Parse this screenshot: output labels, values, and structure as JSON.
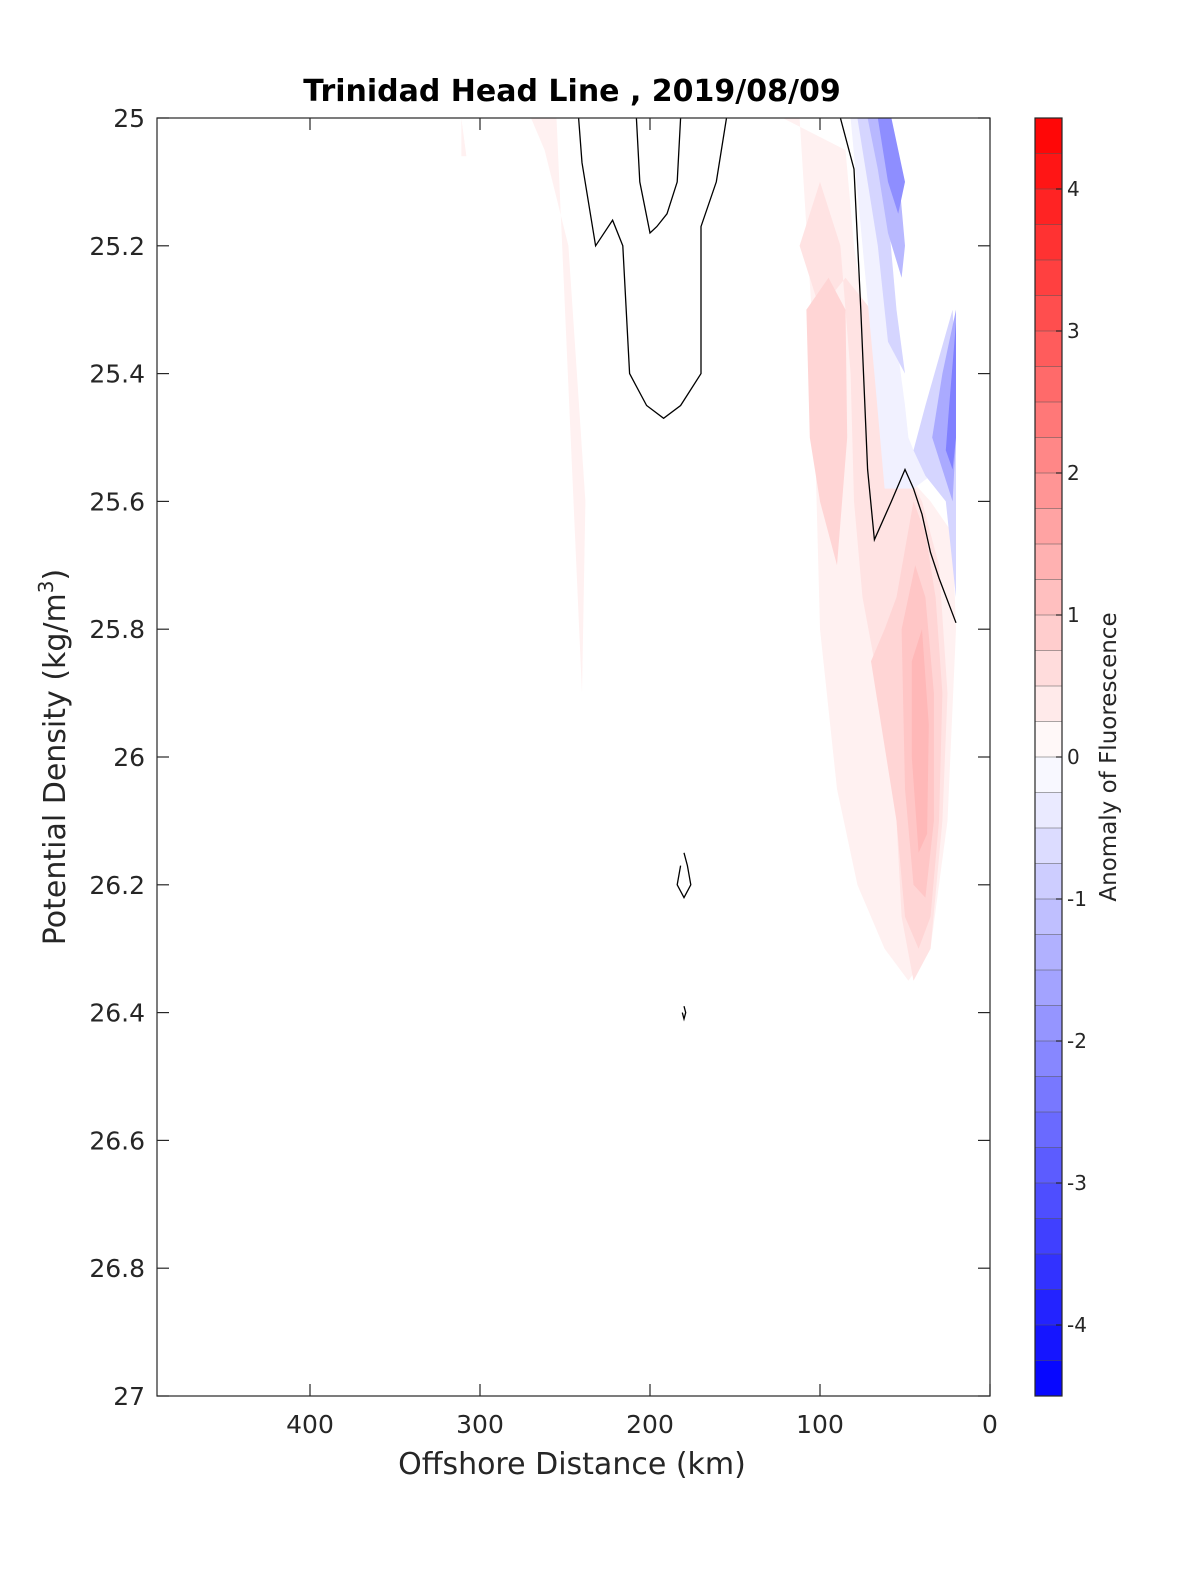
{
  "chart_data": {
    "type": "heatmap",
    "title": "Trinidad Head Line , 2019/08/09",
    "xlabel": "Offshore Distance (km)",
    "ylabel_main": "Potential Density (kg/m",
    "ylabel_sup": "3",
    "ylabel_close": ")",
    "xlim": [
      490,
      0
    ],
    "x_direction": "reversed",
    "ylim": [
      25,
      27
    ],
    "y_direction": "reversed",
    "xticks": [
      400,
      300,
      200,
      100,
      0
    ],
    "xtick_labels": [
      "400",
      "300",
      "200",
      "100",
      "0"
    ],
    "yticks": [
      25,
      25.2,
      25.4,
      25.6,
      25.8,
      26,
      26.2,
      26.4,
      26.6,
      26.8,
      27
    ],
    "ytick_labels": [
      "25",
      "25.2",
      "25.4",
      "25.6",
      "25.8",
      "26",
      "26.2",
      "26.4",
      "26.6",
      "26.8",
      "27"
    ],
    "grid": false,
    "colorbar": {
      "label": "Anomaly of Fluorescence",
      "range": [
        -4.5,
        4.5
      ],
      "level_step": 0.25,
      "ticks": [
        4,
        3,
        2,
        1,
        0,
        -1,
        -2,
        -3,
        -4
      ],
      "tick_labels": [
        "4",
        "3",
        "2",
        "1",
        "0",
        "-1",
        "-2",
        "-3",
        "-4"
      ],
      "low_color": "#0000ff",
      "mid_color": "#ffffff",
      "high_color": "#ff0000"
    },
    "fill_regions": [
      {
        "value": 0.25,
        "points": [
          [
            311,
            25
          ],
          [
            308,
            25.06
          ],
          [
            311,
            25.06
          ]
        ]
      },
      {
        "value": 0.25,
        "points": [
          [
            270,
            25
          ],
          [
            255,
            25
          ],
          [
            245,
            25.6
          ],
          [
            240,
            25.9
          ],
          [
            238,
            25.6
          ],
          [
            248,
            25.2
          ],
          [
            262,
            25.05
          ]
        ]
      },
      {
        "value": 0.25,
        "points": [
          [
            122,
            25
          ],
          [
            112,
            25
          ],
          [
            105,
            25.3
          ],
          [
            100,
            25.8
          ],
          [
            90,
            26.05
          ],
          [
            78,
            26.2
          ],
          [
            62,
            26.3
          ],
          [
            48,
            26.35
          ],
          [
            35,
            26.3
          ],
          [
            25,
            26.1
          ],
          [
            20,
            25.8
          ],
          [
            22,
            25.65
          ],
          [
            35,
            25.6
          ],
          [
            52,
            25.55
          ],
          [
            68,
            25.42
          ],
          [
            80,
            25.2
          ],
          [
            85,
            25.05
          ]
        ]
      },
      {
        "value": 0.5,
        "points": [
          [
            112,
            25.2
          ],
          [
            100,
            25.1
          ],
          [
            88,
            25.2
          ],
          [
            82,
            25.4
          ],
          [
            80,
            25.6
          ],
          [
            75,
            25.75
          ],
          [
            68,
            25.85
          ],
          [
            60,
            25.95
          ],
          [
            55,
            26.1
          ],
          [
            52,
            26.25
          ],
          [
            45,
            26.35
          ],
          [
            35,
            26.3
          ],
          [
            28,
            26.1
          ],
          [
            25,
            25.9
          ],
          [
            30,
            25.7
          ],
          [
            40,
            25.6
          ],
          [
            50,
            25.55
          ],
          [
            62,
            25.45
          ],
          [
            70,
            25.3
          ],
          [
            85,
            25.25
          ],
          [
            100,
            25.3
          ]
        ]
      },
      {
        "value": 0.75,
        "points": [
          [
            108,
            25.3
          ],
          [
            95,
            25.25
          ],
          [
            85,
            25.3
          ],
          [
            84,
            25.5
          ],
          [
            90,
            25.7
          ],
          [
            100,
            25.6
          ],
          [
            106,
            25.5
          ]
        ]
      },
      {
        "value": 0.75,
        "points": [
          [
            70,
            25.85
          ],
          [
            62,
            25.8
          ],
          [
            55,
            25.75
          ],
          [
            45,
            25.6
          ],
          [
            38,
            25.65
          ],
          [
            32,
            25.75
          ],
          [
            28,
            25.9
          ],
          [
            30,
            26.1
          ],
          [
            35,
            26.25
          ],
          [
            42,
            26.3
          ],
          [
            50,
            26.25
          ],
          [
            55,
            26.1
          ]
        ]
      },
      {
        "value": 1.0,
        "points": [
          [
            52,
            25.8
          ],
          [
            44,
            25.7
          ],
          [
            38,
            25.75
          ],
          [
            33,
            25.9
          ],
          [
            33,
            26.1
          ],
          [
            38,
            26.22
          ],
          [
            45,
            26.2
          ],
          [
            50,
            26.05
          ]
        ]
      },
      {
        "value": 1.25,
        "points": [
          [
            46,
            25.85
          ],
          [
            40,
            25.8
          ],
          [
            36,
            25.95
          ],
          [
            37,
            26.12
          ],
          [
            42,
            26.15
          ],
          [
            46,
            26.0
          ]
        ]
      },
      {
        "value": -0.25,
        "points": [
          [
            82,
            25
          ],
          [
            75,
            25
          ],
          [
            60,
            25.2
          ],
          [
            55,
            25.35
          ],
          [
            50,
            25.45
          ],
          [
            48,
            25.5
          ],
          [
            45,
            25.52
          ],
          [
            40,
            25.5
          ],
          [
            30,
            25.45
          ],
          [
            20,
            25.3
          ],
          [
            20,
            25.6
          ],
          [
            30,
            25.55
          ],
          [
            45,
            25.58
          ],
          [
            62,
            25.58
          ],
          [
            68,
            25.4
          ],
          [
            75,
            25.2
          ]
        ]
      },
      {
        "value": -0.75,
        "points": [
          [
            78,
            25
          ],
          [
            70,
            25
          ],
          [
            60,
            25.15
          ],
          [
            55,
            25.3
          ],
          [
            50,
            25.4
          ],
          [
            60,
            25.35
          ],
          [
            66,
            25.2
          ],
          [
            72,
            25.1
          ]
        ]
      },
      {
        "value": -1.25,
        "points": [
          [
            72,
            25
          ],
          [
            65,
            25
          ],
          [
            55,
            25.05
          ],
          [
            50,
            25.2
          ],
          [
            52,
            25.25
          ],
          [
            60,
            25.18
          ],
          [
            66,
            25.08
          ]
        ]
      },
      {
        "value": -2.0,
        "points": [
          [
            66,
            25
          ],
          [
            58,
            25
          ],
          [
            50,
            25.1
          ],
          [
            54,
            25.15
          ],
          [
            60,
            25.1
          ]
        ]
      },
      {
        "value": -0.75,
        "points": [
          [
            22,
            25.3
          ],
          [
            38,
            25.45
          ],
          [
            45,
            25.52
          ],
          [
            38,
            25.56
          ],
          [
            26,
            25.6
          ],
          [
            20,
            25.75
          ],
          [
            20,
            25.4
          ]
        ]
      },
      {
        "value": -1.5,
        "points": [
          [
            20,
            25.3
          ],
          [
            28,
            25.4
          ],
          [
            34,
            25.5
          ],
          [
            28,
            25.55
          ],
          [
            22,
            25.6
          ],
          [
            20,
            25.5
          ]
        ]
      },
      {
        "value": -2.25,
        "points": [
          [
            20,
            25.32
          ],
          [
            24,
            25.45
          ],
          [
            26,
            25.52
          ],
          [
            22,
            25.55
          ],
          [
            20,
            25.5
          ]
        ]
      }
    ],
    "contour_lines": [
      {
        "value": 0,
        "points": [
          [
            242,
            25
          ],
          [
            240,
            25.07
          ],
          [
            232,
            25.2
          ],
          [
            222,
            25.16
          ],
          [
            216,
            25.2
          ],
          [
            212,
            25.4
          ],
          [
            202,
            25.45
          ],
          [
            192,
            25.47
          ],
          [
            182,
            25.45
          ],
          [
            170,
            25.4
          ],
          [
            170,
            25.17
          ],
          [
            161,
            25.1
          ],
          [
            155,
            25
          ]
        ]
      },
      {
        "value": 0,
        "points": [
          [
            208,
            25
          ],
          [
            206,
            25.1
          ],
          [
            200,
            25.18
          ],
          [
            196,
            25.17
          ],
          [
            190,
            25.15
          ],
          [
            184,
            25.1
          ],
          [
            182,
            25
          ]
        ]
      },
      {
        "value": 0,
        "points": [
          [
            88,
            25
          ],
          [
            80,
            25.08
          ],
          [
            76,
            25.3
          ],
          [
            72,
            25.55
          ],
          [
            68,
            25.66
          ],
          [
            58,
            25.6
          ],
          [
            50,
            25.55
          ],
          [
            45,
            25.58
          ],
          [
            40,
            25.62
          ],
          [
            35,
            25.68
          ],
          [
            30,
            25.72
          ],
          [
            20,
            25.79
          ]
        ]
      },
      {
        "value": 0,
        "points": [
          [
            180,
            26.15
          ],
          [
            178,
            26.17
          ],
          [
            176,
            26.2
          ],
          [
            180,
            26.22
          ],
          [
            184,
            26.2
          ],
          [
            182,
            26.17
          ]
        ]
      },
      {
        "value": 0,
        "points": [
          [
            180,
            26.39
          ],
          [
            179,
            26.4
          ],
          [
            180,
            26.41
          ],
          [
            181,
            26.4
          ]
        ]
      }
    ]
  }
}
